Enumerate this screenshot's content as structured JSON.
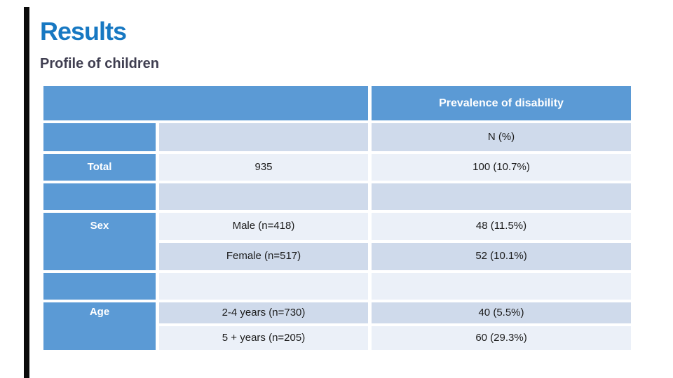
{
  "slide": {
    "title": "Results",
    "subtitle": "Profile of children"
  },
  "table": {
    "header_right": "Prevalence of disability",
    "subheader_right": "N (%)",
    "total_label": "Total",
    "total_n": "935",
    "total_value": "100 (10.7%)",
    "sex_label": "Sex",
    "male_category": "Male (n=418)",
    "male_value": "48 (11.5%)",
    "female_category": "Female (n=517)",
    "female_value": "52 (10.1%)",
    "age_label": "Age",
    "age1_category": "2-4 years (n=730)",
    "age1_value": "40 (5.5%)",
    "age2_category": "5 + years (n=205)",
    "age2_value": "60 (29.3%)"
  },
  "colors": {
    "header_blue": "#5B9AD5",
    "band_dark": "#CFDAEB",
    "band_light": "#EBF0F8",
    "title_blue": "#1778C2",
    "subtitle_dark": "#3F3E50"
  }
}
